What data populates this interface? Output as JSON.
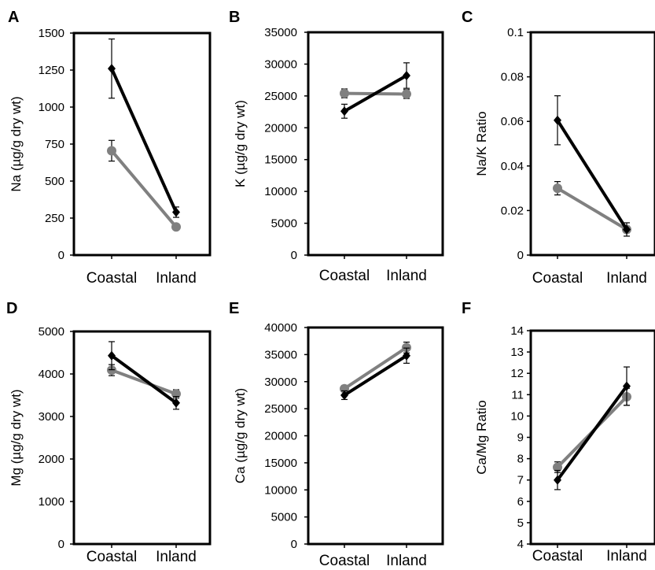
{
  "chart_data": [
    {
      "type": "line",
      "panel": "A",
      "categories": [
        "Coastal",
        "Inland"
      ],
      "ylabel": "Na (µg/g dry wt)",
      "ylim": [
        0,
        1500
      ],
      "yticks": [
        0,
        250,
        500,
        750,
        1000,
        1250,
        1500
      ],
      "series": [
        {
          "color": "#000000",
          "marker": "diamond",
          "values": [
            1260,
            290
          ],
          "errors": [
            200,
            35
          ]
        },
        {
          "color": "#808080",
          "marker": "circle",
          "values": [
            705,
            190
          ],
          "errors": [
            70,
            10
          ]
        }
      ]
    },
    {
      "type": "line",
      "panel": "B",
      "categories": [
        "Coastal",
        "Inland"
      ],
      "ylabel": "K (µg/g dry wt)",
      "ylim": [
        0,
        35000
      ],
      "yticks": [
        0,
        5000,
        10000,
        15000,
        20000,
        25000,
        30000,
        35000
      ],
      "series": [
        {
          "color": "#000000",
          "marker": "diamond",
          "values": [
            22600,
            28200
          ],
          "errors": [
            1100,
            2000
          ]
        },
        {
          "color": "#808080",
          "marker": "circle",
          "values": [
            25400,
            25300
          ],
          "errors": [
            700,
            700
          ]
        }
      ]
    },
    {
      "type": "line",
      "panel": "C",
      "categories": [
        "Coastal",
        "Inland"
      ],
      "ylabel": "Na/K Ratio",
      "ylim": [
        0,
        0.1
      ],
      "yticks": [
        "0",
        "0.02",
        "0.04",
        "0.06",
        "0.08",
        "0.1"
      ],
      "series": [
        {
          "color": "#000000",
          "marker": "diamond",
          "values": [
            0.0605,
            0.0115
          ],
          "errors": [
            0.011,
            0.003
          ]
        },
        {
          "color": "#808080",
          "marker": "circle",
          "values": [
            0.03,
            0.0115
          ],
          "errors": [
            0.003,
            0.0015
          ]
        }
      ]
    },
    {
      "type": "line",
      "panel": "D",
      "categories": [
        "Coastal",
        "Inland"
      ],
      "ylabel": "Mg (µg/g dry wt)",
      "ylim": [
        0,
        5000
      ],
      "yticks": [
        0,
        1000,
        2000,
        3000,
        4000,
        5000
      ],
      "series": [
        {
          "color": "#000000",
          "marker": "diamond",
          "values": [
            4430,
            3320
          ],
          "errors": [
            330,
            150
          ]
        },
        {
          "color": "#808080",
          "marker": "circle",
          "values": [
            4090,
            3530
          ],
          "errors": [
            130,
            100
          ]
        }
      ]
    },
    {
      "type": "line",
      "panel": "E",
      "categories": [
        "Coastal",
        "Inland"
      ],
      "ylabel": "Ca (µg/g dry wt)",
      "ylim": [
        0,
        40000
      ],
      "yticks": [
        0,
        5000,
        10000,
        15000,
        20000,
        25000,
        30000,
        35000,
        40000
      ],
      "series": [
        {
          "color": "#000000",
          "marker": "diamond",
          "values": [
            27500,
            34800
          ],
          "errors": [
            800,
            1400
          ]
        },
        {
          "color": "#808080",
          "marker": "circle",
          "values": [
            28700,
            36300
          ],
          "errors": [
            600,
            1000
          ]
        }
      ]
    },
    {
      "type": "line",
      "panel": "F",
      "categories": [
        "Coastal",
        "Inland"
      ],
      "ylabel": "Ca/Mg Ratio",
      "ylim": [
        4,
        14
      ],
      "yticks": [
        4,
        5,
        6,
        7,
        8,
        9,
        10,
        11,
        12,
        13,
        14
      ],
      "series": [
        {
          "color": "#000000",
          "marker": "diamond",
          "values": [
            7.0,
            11.4
          ],
          "errors": [
            0.45,
            0.9
          ]
        },
        {
          "color": "#808080",
          "marker": "circle",
          "values": [
            7.6,
            10.9
          ],
          "errors": [
            0.25,
            0.4
          ]
        }
      ]
    }
  ]
}
